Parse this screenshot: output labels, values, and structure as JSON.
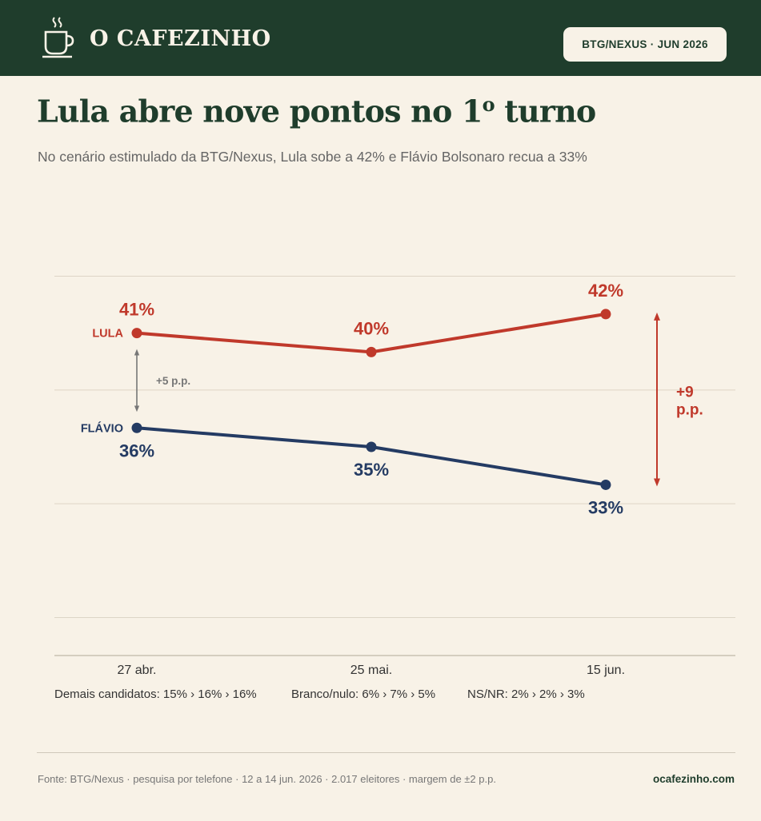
{
  "header": {
    "brand": "O CAFEZINHO",
    "badge": "BTG/NEXUS · JUN 2026"
  },
  "title_main": "Lula abre nove pontos no 1",
  "title_super": "o",
  "title_end": " turno",
  "subtitle": "No cenário estimulado da BTG/Nexus, Lula sobe a 42% e Flávio Bolsonaro recua a 33%",
  "chart_data": {
    "type": "line",
    "categories": [
      "27 abr.",
      "25 mai.",
      "15 jun."
    ],
    "ylim": [
      24,
      46
    ],
    "grid": true,
    "series": [
      {
        "name": "LULA",
        "values": [
          41,
          40,
          42
        ],
        "labels": [
          "41%",
          "40%",
          "42%"
        ],
        "color": "#c0392b"
      },
      {
        "name": "FLÁVIO",
        "values": [
          36,
          35,
          33
        ],
        "labels": [
          "36%",
          "35%",
          "33%"
        ],
        "color": "#243b63"
      }
    ],
    "annotations": {
      "gap_start": "+5 p.p.",
      "gap_end_line1": "+9",
      "gap_end_line2": "p.p."
    },
    "others": [
      {
        "label": "Demais candidatos:",
        "values": "15% › 16% › 16%"
      },
      {
        "label": "Branco/nulo:",
        "values": "6% › 7% › 5%"
      },
      {
        "label": "NS/NR:",
        "values": "2% › 2% › 3%"
      }
    ]
  },
  "footer": {
    "source": "Fonte: BTG/Nexus · pesquisa por telefone · 12 a 14 jun. 2026 · 2.017 eleitores · margem de ±2 p.p.",
    "site": "ocafezinho.com"
  },
  "colors": {
    "header_bg": "#1f3d2c",
    "page_bg": "#f8f2e7",
    "lula": "#c0392b",
    "flavio": "#243b63",
    "annotation_gray": "#777777"
  }
}
